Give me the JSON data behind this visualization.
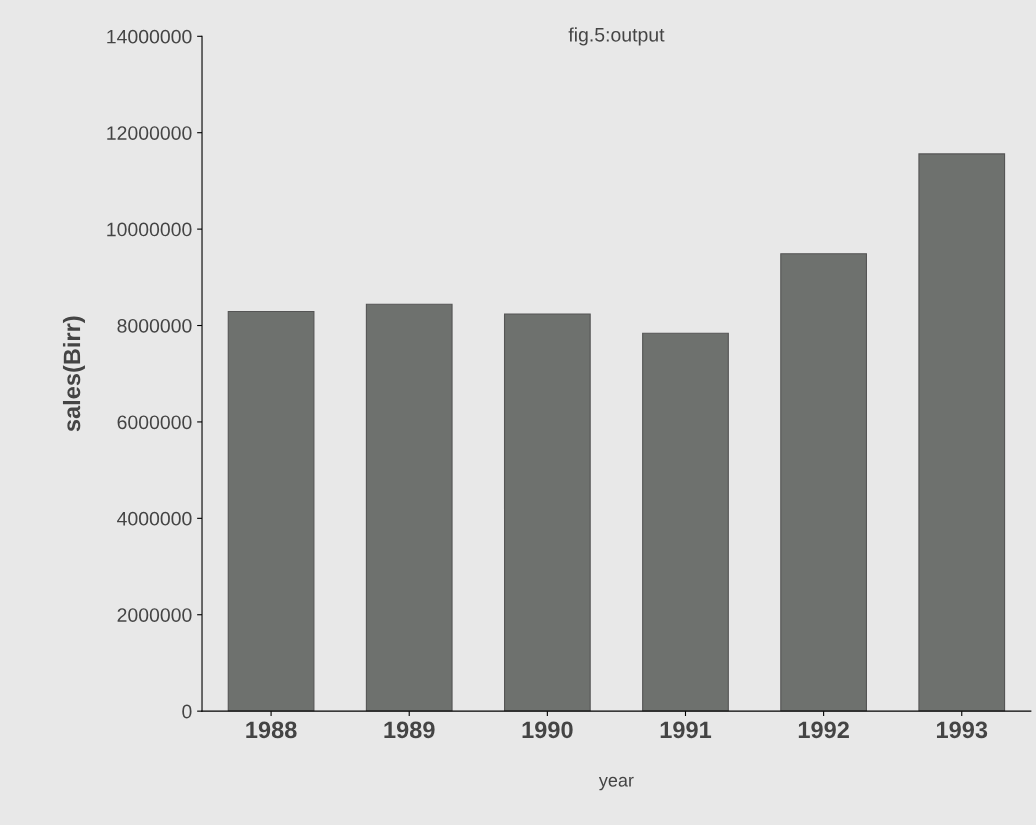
{
  "chart_data": {
    "type": "bar",
    "title": "fig.5:output",
    "xlabel": "year",
    "ylabel": "sales(Birr)",
    "categories": [
      "1988",
      "1989",
      "1990",
      "1991",
      "1992",
      "1993"
    ],
    "values": [
      8290000,
      8440000,
      8240000,
      7840000,
      9490000,
      11560000
    ],
    "color": "#6e716e",
    "ylim": [
      0,
      14000000
    ],
    "yticks": [
      0,
      2000000,
      4000000,
      6000000,
      8000000,
      10000000,
      12000000,
      14000000
    ],
    "grid": false,
    "legend": false
  }
}
